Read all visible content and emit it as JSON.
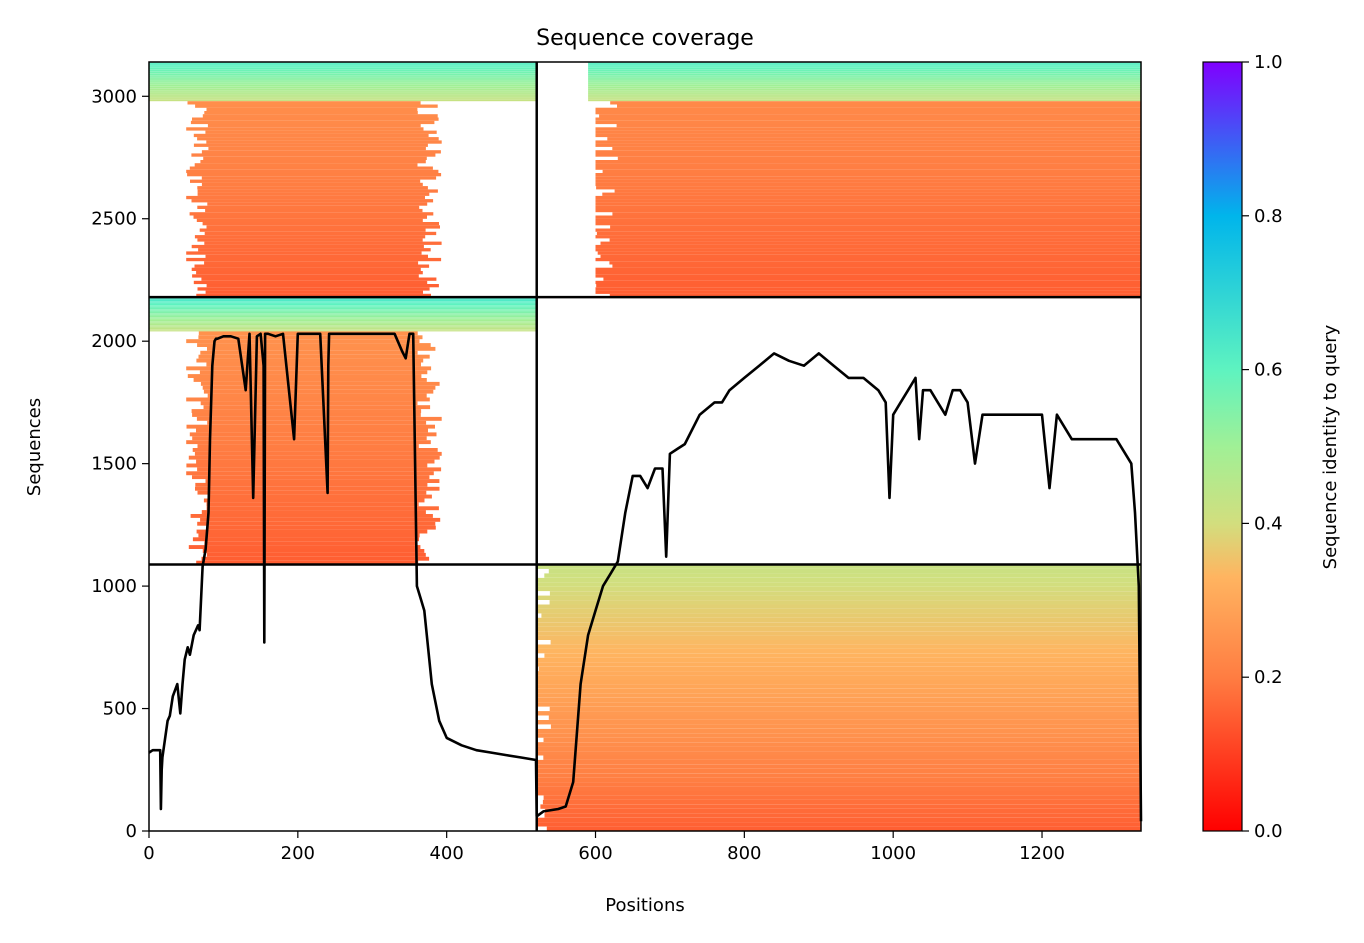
{
  "chart_data": {
    "type": "heatmap",
    "title": "Sequence coverage",
    "xlabel": "Positions",
    "ylabel": "Sequences",
    "xlim": [
      0,
      1333
    ],
    "ylim": [
      0,
      3140
    ],
    "x_ticks": [
      0,
      200,
      400,
      600,
      800,
      1000,
      1200
    ],
    "y_ticks": [
      0,
      500,
      1000,
      1500,
      2000,
      2500,
      3000
    ],
    "colormap": "rainbow_r",
    "colors": {
      "low": "#ff0000",
      "mid_low": "#ffad5a",
      "mid": "#d2de7e",
      "mid_high": "#5ef3c0",
      "high_mid": "#00b5eb",
      "high": "#8000ff",
      "line": "#000000"
    },
    "colorbar": {
      "label": "Sequence identity to query",
      "range": [
        0.0,
        1.0
      ],
      "ticks": [
        "0.0",
        "0.2",
        "0.4",
        "0.6",
        "0.8",
        "1.0"
      ]
    },
    "chain_boundaries_x": [
      521
    ],
    "chain_boundaries_y": [
      1088,
      2180
    ],
    "blocks": [
      {
        "x": [
          0,
          521
        ],
        "rows": [
          2980,
          3140
        ],
        "coverage": "full",
        "identity": [
          0.42,
          0.62
        ]
      },
      {
        "x": [
          80,
          360
        ],
        "rows": [
          2180,
          2980
        ],
        "coverage": "partial",
        "identity": [
          0.15,
          0.24
        ]
      },
      {
        "x": [
          0,
          521
        ],
        "rows": [
          2040,
          2180
        ],
        "coverage": "full",
        "identity": [
          0.42,
          0.65
        ]
      },
      {
        "x": [
          80,
          360
        ],
        "rows": [
          1088,
          2040
        ],
        "coverage": "partial",
        "identity": [
          0.15,
          0.25
        ]
      },
      {
        "x": [
          590,
          1333
        ],
        "rows": [
          2980,
          3140
        ],
        "coverage": "full",
        "identity": [
          0.42,
          0.62
        ]
      },
      {
        "x": [
          630,
          1333
        ],
        "rows": [
          2180,
          2980
        ],
        "coverage": "partial",
        "identity": [
          0.15,
          0.23
        ]
      },
      {
        "x": [
          540,
          1333
        ],
        "rows": [
          0,
          1088
        ],
        "coverage": "partial",
        "identity": [
          0.15,
          0.42
        ]
      }
    ],
    "series": [
      {
        "x": [
          0,
          5,
          15,
          16,
          17,
          18,
          25,
          28,
          32,
          38,
          42,
          45,
          48,
          52,
          55,
          60,
          66,
          68,
          72,
          76,
          80,
          82,
          85,
          88,
          90,
          92,
          100,
          110,
          120,
          130,
          135,
          140,
          145,
          150,
          154,
          155,
          156,
          160,
          170,
          180,
          195,
          200,
          210,
          230,
          240,
          241,
          242,
          250,
          270,
          290,
          300,
          320,
          330,
          340,
          345,
          350,
          355,
          360,
          365,
          370,
          380,
          390,
          400,
          420,
          440,
          460,
          480,
          500,
          520,
          521
        ],
        "y": [
          320,
          330,
          330,
          90,
          250,
          300,
          450,
          470,
          550,
          600,
          480,
          600,
          700,
          750,
          720,
          800,
          840,
          820,
          1080,
          1150,
          1300,
          1600,
          1900,
          2000,
          2010,
          2010,
          2020,
          2020,
          2010,
          1800,
          2030,
          1360,
          2020,
          2030,
          1900,
          770,
          2030,
          2030,
          2020,
          2030,
          1600,
          2030,
          2030,
          2030,
          1380,
          1900,
          2030,
          2030,
          2030,
          2030,
          2030,
          2030,
          2030,
          1960,
          1930,
          2030,
          2030,
          1000,
          950,
          900,
          600,
          450,
          380,
          350,
          330,
          320,
          310,
          300,
          290,
          60
        ]
      },
      {
        "x": [
          521,
          530,
          550,
          560,
          570,
          580,
          590,
          600,
          610,
          620,
          630,
          640,
          650,
          660,
          670,
          680,
          690,
          695,
          700,
          710,
          720,
          740,
          760,
          770,
          780,
          800,
          820,
          840,
          860,
          880,
          900,
          920,
          940,
          960,
          980,
          990,
          995,
          1000,
          1010,
          1020,
          1030,
          1035,
          1040,
          1050,
          1060,
          1070,
          1080,
          1090,
          1100,
          1110,
          1120,
          1140,
          1160,
          1180,
          1200,
          1210,
          1220,
          1240,
          1260,
          1280,
          1300,
          1310,
          1320,
          1325,
          1330,
          1333
        ],
        "y": [
          60,
          80,
          90,
          100,
          200,
          600,
          800,
          900,
          1000,
          1050,
          1100,
          1300,
          1450,
          1450,
          1400,
          1480,
          1480,
          1120,
          1540,
          1560,
          1580,
          1700,
          1750,
          1750,
          1800,
          1850,
          1900,
          1950,
          1920,
          1900,
          1950,
          1900,
          1850,
          1850,
          1800,
          1750,
          1360,
          1700,
          1750,
          1800,
          1850,
          1600,
          1800,
          1800,
          1750,
          1700,
          1800,
          1800,
          1750,
          1500,
          1700,
          1700,
          1700,
          1700,
          1700,
          1400,
          1700,
          1600,
          1600,
          1600,
          1600,
          1550,
          1500,
          1300,
          1000,
          40
        ]
      }
    ]
  }
}
